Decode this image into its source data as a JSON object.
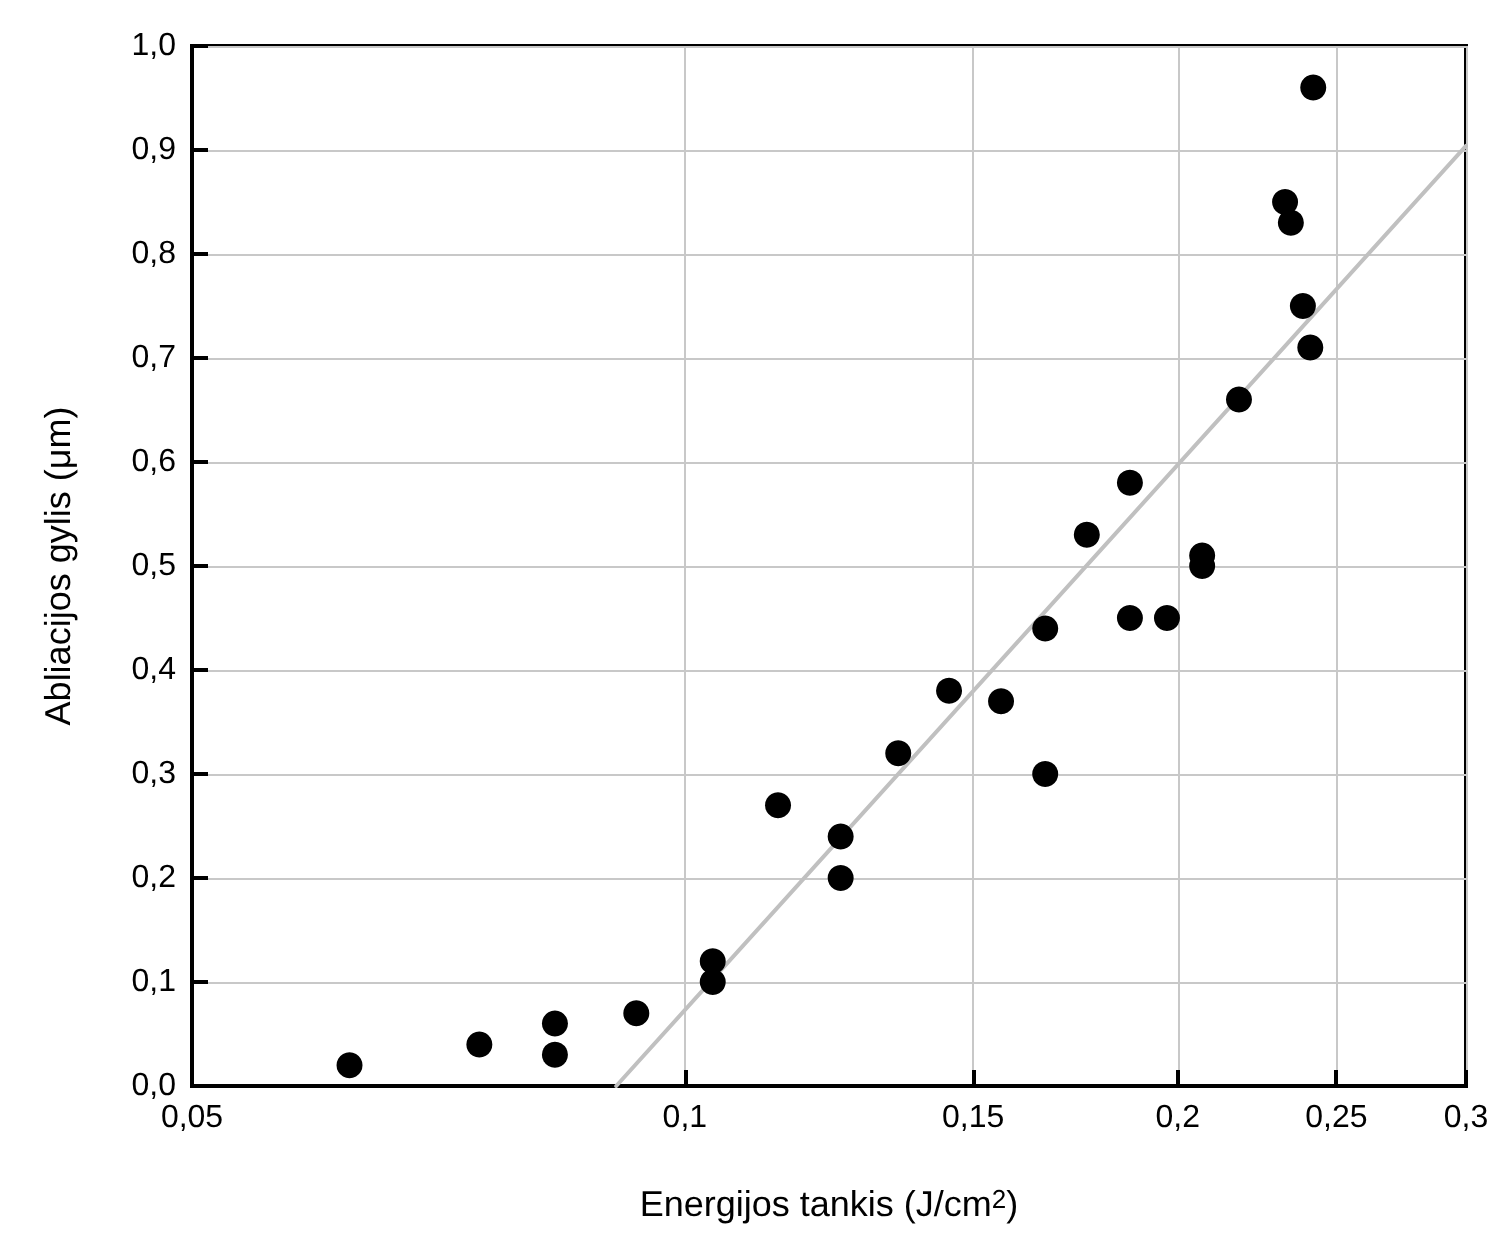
{
  "chart_data": {
    "type": "scatter",
    "xlabel": "Energijos tankis (J/cm$^{2}$)",
    "ylabel": "Abliacijos gylis (μm)",
    "log": "x",
    "grid": true,
    "marker": "circle",
    "xlim": [
      0.05,
      0.3
    ],
    "xticks": [
      {
        "value": 0.05,
        "label": "0,05"
      },
      {
        "value": 0.1,
        "label": "0,1"
      },
      {
        "value": 0.15,
        "label": "0,15"
      },
      {
        "value": 0.2,
        "label": "0,2"
      },
      {
        "value": 0.25,
        "label": "0,25"
      },
      {
        "value": 0.3,
        "label": "0,3"
      }
    ],
    "ylim": [
      0,
      1
    ],
    "yticks": [
      {
        "value": 0,
        "label": "0,0"
      },
      {
        "value": 0.1,
        "label": "0,1"
      },
      {
        "value": 0.2,
        "label": "0,2"
      },
      {
        "value": 0.3,
        "label": "0,3"
      },
      {
        "value": 0.4,
        "label": "0,4"
      },
      {
        "value": 0.5,
        "label": "0,5"
      },
      {
        "value": 0.6,
        "label": "0,6"
      },
      {
        "value": 0.7,
        "label": "0,7"
      },
      {
        "value": 0.8,
        "label": "0,8"
      },
      {
        "value": 0.9,
        "label": "0,9"
      },
      {
        "value": 1,
        "label": "1,0"
      }
    ],
    "series": [
      {
        "color": "#000000",
        "x": [
          0.0624,
          0.0749,
          0.0833,
          0.0833,
          0.0934,
          0.104,
          0.104,
          0.114,
          0.1245,
          0.1245,
          0.135,
          0.145,
          0.156,
          0.166,
          0.166,
          0.176,
          0.187,
          0.187,
          0.197,
          0.207,
          0.207,
          0.218,
          0.2326,
          0.2345,
          0.2385,
          0.241,
          0.242
        ],
        "values": [
          0.02,
          0.04,
          0.06,
          0.03,
          0.07,
          0.12,
          0.1,
          0.27,
          0.24,
          0.2,
          0.32,
          0.38,
          0.37,
          0.3,
          0.44,
          0.53,
          0.58,
          0.45,
          0.45,
          0.51,
          0.5,
          0.66,
          0.85,
          0.83,
          0.75,
          0.71,
          0.96
        ]
      },
      {
        "type": "line",
        "color": "#c0c0c0",
        "marker": "none",
        "line_style": "solid",
        "x": [
          0.0908,
          0.3
        ],
        "values": [
          0,
          0.904
        ]
      }
    ]
  }
}
